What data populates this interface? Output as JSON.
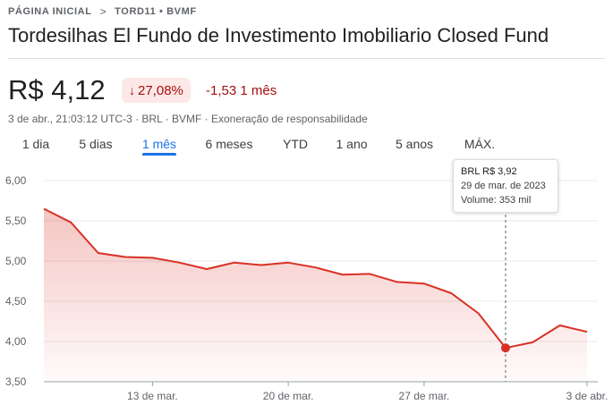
{
  "breadcrumb": {
    "home": "PÁGINA INICIAL",
    "separator": ">",
    "current": "TORD11 • BVMF"
  },
  "title": "Tordesilhas El Fundo de Investimento Imobiliario Closed Fund",
  "price": "R$ 4,12",
  "change": {
    "percent_arrow": "↓",
    "percent": "27,08%",
    "amount_period": "-1,53 1 mês",
    "color": "#a50e0e",
    "badge_bg": "#fce8e6"
  },
  "meta": {
    "info": "3 de abr., 21:03:12 UTC-3 · BRL · BVMF · ",
    "disclaimer": "Exoneração de responsabilidade"
  },
  "tabs": [
    {
      "label": "1 dia",
      "active": false
    },
    {
      "label": "5 dias",
      "active": false
    },
    {
      "label": "1 mês",
      "active": true
    },
    {
      "label": "6 meses",
      "active": false
    },
    {
      "label": "YTD",
      "active": false
    },
    {
      "label": "1 ano",
      "active": false
    },
    {
      "label": "5 anos",
      "active": false
    },
    {
      "label": "MÁX.",
      "active": false
    }
  ],
  "tooltip": {
    "price": "BRL R$ 3,92",
    "date": "29 de mar. de 2023",
    "volume": "Volume: 353 mil"
  },
  "chart_data": {
    "type": "area",
    "line_color": "#d93025",
    "ylim": [
      3.5,
      6.0
    ],
    "y_ticks": [
      "6,00",
      "5,50",
      "5,00",
      "4,50",
      "4,00",
      "3,50"
    ],
    "y_tick_values": [
      6.0,
      5.5,
      5.0,
      4.5,
      4.0,
      3.5
    ],
    "x_ticks": [
      {
        "label": "13 de mar.",
        "index": 4
      },
      {
        "label": "20 de mar.",
        "index": 9
      },
      {
        "label": "27 de mar.",
        "index": 14
      },
      {
        "label": "3 de abr.",
        "index": 20
      }
    ],
    "grid": true,
    "x_count": 21,
    "values": [
      5.65,
      5.48,
      5.1,
      5.05,
      5.04,
      4.98,
      4.9,
      4.98,
      4.95,
      4.98,
      4.92,
      4.83,
      4.84,
      4.74,
      4.72,
      4.6,
      4.35,
      3.92,
      3.99,
      4.2,
      4.12
    ],
    "highlight_index": 17
  }
}
